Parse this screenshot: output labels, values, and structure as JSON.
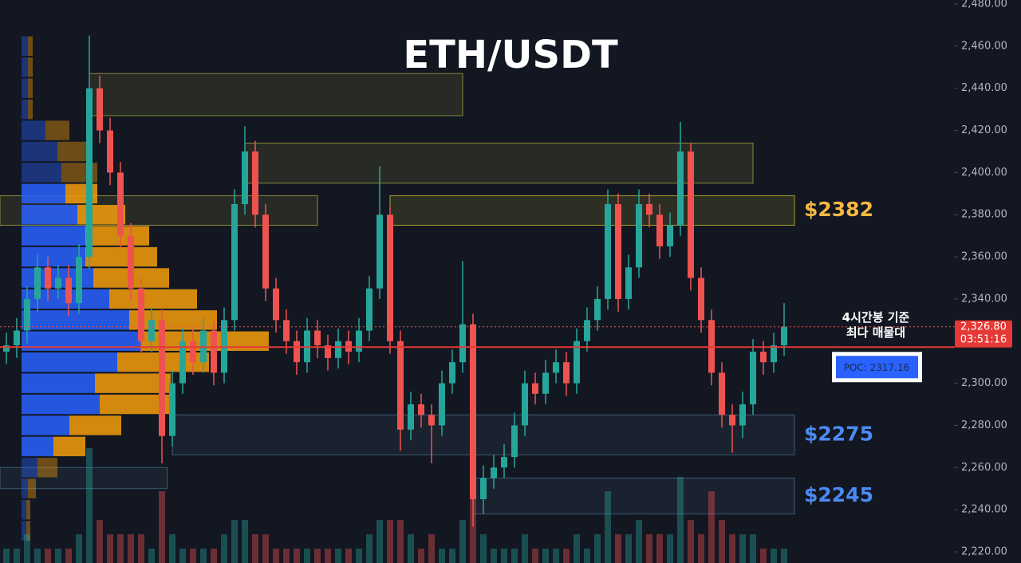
{
  "chart_data": {
    "type": "candlestick",
    "title": "ETH/USDT",
    "ylim": [
      2220,
      2480
    ],
    "yticks": [
      {
        "value": 2220,
        "label": "2,220.00"
      },
      {
        "value": 2240,
        "label": "2,240.00"
      },
      {
        "value": 2260,
        "label": "2,260.00"
      },
      {
        "value": 2280,
        "label": "2,280.00"
      },
      {
        "value": 2300,
        "label": "2,300.00"
      },
      {
        "value": 2320,
        "label": "2,320.00"
      },
      {
        "value": 2340,
        "label": "2,340.00"
      },
      {
        "value": 2360,
        "label": "2,360.00"
      },
      {
        "value": 2380,
        "label": "2,380.00"
      },
      {
        "value": 2400,
        "label": "2,400.00"
      },
      {
        "value": 2420,
        "label": "2,420.00"
      },
      {
        "value": 2440,
        "label": "2,440.00"
      },
      {
        "value": 2460,
        "label": "2,460.00"
      },
      {
        "value": 2480,
        "label": "2,480.00"
      }
    ],
    "up_color": "#26a69a",
    "down_color": "#ef5350",
    "open": [
      2315,
      2318,
      2325,
      2340,
      2355,
      2345,
      2350,
      2338,
      2360,
      2440,
      2420,
      2400,
      2370,
      2345,
      2320,
      2330,
      2275,
      2300,
      2320,
      2310,
      2325,
      2305,
      2330,
      2385,
      2410,
      2380,
      2345,
      2330,
      2320,
      2310,
      2325,
      2318,
      2312,
      2320,
      2315,
      2325,
      2345,
      2380,
      2320,
      2278,
      2290,
      2285,
      2280,
      2300,
      2310,
      2328,
      2245,
      2255,
      2260,
      2265,
      2280,
      2300,
      2295,
      2305,
      2310,
      2300,
      2320,
      2330,
      2340,
      2385,
      2340,
      2355,
      2385,
      2380,
      2365,
      2375,
      2410,
      2350,
      2330,
      2305,
      2285,
      2280,
      2290,
      2315,
      2310,
      2318
    ],
    "high": [
      2324,
      2331,
      2346,
      2361,
      2360,
      2356,
      2356,
      2366,
      2465,
      2446,
      2426,
      2405,
      2376,
      2350,
      2336,
      2335,
      2306,
      2326,
      2326,
      2331,
      2330,
      2336,
      2392,
      2422,
      2415,
      2385,
      2350,
      2335,
      2325,
      2331,
      2330,
      2323,
      2326,
      2325,
      2331,
      2351,
      2403,
      2384,
      2325,
      2296,
      2295,
      2290,
      2306,
      2316,
      2358,
      2333,
      2261,
      2266,
      2271,
      2286,
      2306,
      2305,
      2311,
      2316,
      2315,
      2326,
      2336,
      2346,
      2392,
      2390,
      2361,
      2392,
      2390,
      2385,
      2381,
      2424,
      2414,
      2355,
      2335,
      2310,
      2290,
      2296,
      2321,
      2320,
      2324,
      2338
    ],
    "low": [
      2309,
      2312,
      2319,
      2334,
      2339,
      2340,
      2332,
      2333,
      2354,
      2414,
      2394,
      2364,
      2339,
      2314,
      2315,
      2262,
      2270,
      2295,
      2304,
      2305,
      2299,
      2300,
      2325,
      2380,
      2374,
      2339,
      2324,
      2314,
      2304,
      2305,
      2312,
      2306,
      2307,
      2309,
      2310,
      2320,
      2340,
      2314,
      2268,
      2273,
      2279,
      2262,
      2275,
      2295,
      2305,
      2232,
      2238,
      2250,
      2255,
      2260,
      2275,
      2290,
      2290,
      2300,
      2294,
      2295,
      2315,
      2325,
      2335,
      2334,
      2335,
      2350,
      2374,
      2359,
      2360,
      2370,
      2344,
      2324,
      2299,
      2279,
      2267,
      2274,
      2285,
      2304,
      2305,
      2313
    ],
    "close": [
      2318,
      2325,
      2340,
      2355,
      2345,
      2350,
      2338,
      2360,
      2440,
      2420,
      2400,
      2370,
      2345,
      2320,
      2330,
      2275,
      2300,
      2320,
      2310,
      2325,
      2305,
      2330,
      2385,
      2410,
      2380,
      2345,
      2330,
      2320,
      2310,
      2325,
      2318,
      2312,
      2320,
      2315,
      2325,
      2345,
      2380,
      2320,
      2278,
      2290,
      2285,
      2280,
      2300,
      2310,
      2328,
      2245,
      2255,
      2260,
      2265,
      2280,
      2300,
      2295,
      2305,
      2310,
      2300,
      2320,
      2330,
      2340,
      2385,
      2340,
      2355,
      2385,
      2380,
      2365,
      2375,
      2410,
      2350,
      2330,
      2305,
      2285,
      2280,
      2290,
      2315,
      2310,
      2318,
      2326.8
    ],
    "volume": [
      1,
      1,
      2,
      1,
      1,
      1,
      1,
      2,
      8,
      3,
      2,
      2,
      2,
      2,
      1,
      5,
      2,
      1,
      1,
      1,
      1,
      2,
      3,
      3,
      2,
      2,
      1,
      1,
      1,
      1,
      1,
      1,
      1,
      1,
      1,
      2,
      3,
      3,
      3,
      2,
      1,
      2,
      1,
      1,
      3,
      6,
      2,
      1,
      1,
      1,
      2,
      1,
      1,
      1,
      1,
      2,
      1,
      2,
      5,
      2,
      2,
      3,
      2,
      2,
      2,
      6,
      3,
      2,
      5,
      3,
      2,
      2,
      2,
      1,
      1,
      1
    ],
    "volume_profile": {
      "levels": [
        2460,
        2450,
        2440,
        2430,
        2420,
        2410,
        2400,
        2390,
        2380,
        2370,
        2360,
        2350,
        2340,
        2330,
        2320,
        2310,
        2300,
        2290,
        2280,
        2270,
        2260,
        2250,
        2240,
        2230
      ],
      "buy": [
        8,
        8,
        8,
        8,
        30,
        45,
        50,
        55,
        70,
        80,
        80,
        90,
        110,
        135,
        150,
        120,
        92,
        98,
        60,
        40,
        20,
        8,
        6,
        6
      ],
      "sell": [
        6,
        6,
        6,
        6,
        30,
        40,
        45,
        40,
        60,
        80,
        90,
        95,
        110,
        110,
        160,
        115,
        95,
        90,
        65,
        40,
        25,
        10,
        5,
        5
      ],
      "buy_color": "#2962ff",
      "sell_color": "#f59e0b",
      "value_area": [
        2270,
        2390
      ]
    },
    "zones": [
      {
        "low": 2427,
        "high": 2447,
        "start": 8,
        "end": 44,
        "color": "#8a8a3a"
      },
      {
        "low": 2395,
        "high": 2414,
        "start": 23,
        "end": 72,
        "color": "#8a8a3a"
      },
      {
        "low": 2375,
        "high": 2389,
        "start": null,
        "end": 30,
        "color": "#8a8a3a"
      },
      {
        "low": 2375,
        "high": 2389,
        "start": 37,
        "end": 76,
        "color": "#a8a030",
        "label": "$2382",
        "label_color": "#f5b841"
      },
      {
        "low": 2266,
        "high": 2285,
        "start": 16,
        "end": 76,
        "color": "#3d5a70",
        "label": "$2275",
        "label_color": "#4a8af4"
      },
      {
        "low": 2238,
        "high": 2255,
        "start": 45,
        "end": 76,
        "color": "#3d5a70",
        "label": "$2245",
        "label_color": "#4a8af4"
      },
      {
        "low": 2250,
        "high": 2260,
        "start": null,
        "end": 15.5,
        "color": "#3d5a70"
      }
    ],
    "poc": {
      "value": 2317.16,
      "label": "POC: 2317.16"
    },
    "annotation": [
      "4시간봉 기준",
      "최다 매물대"
    ],
    "last_price": {
      "value": 2326.8,
      "label": "2,326.80"
    },
    "countdown": "03:51:16"
  }
}
